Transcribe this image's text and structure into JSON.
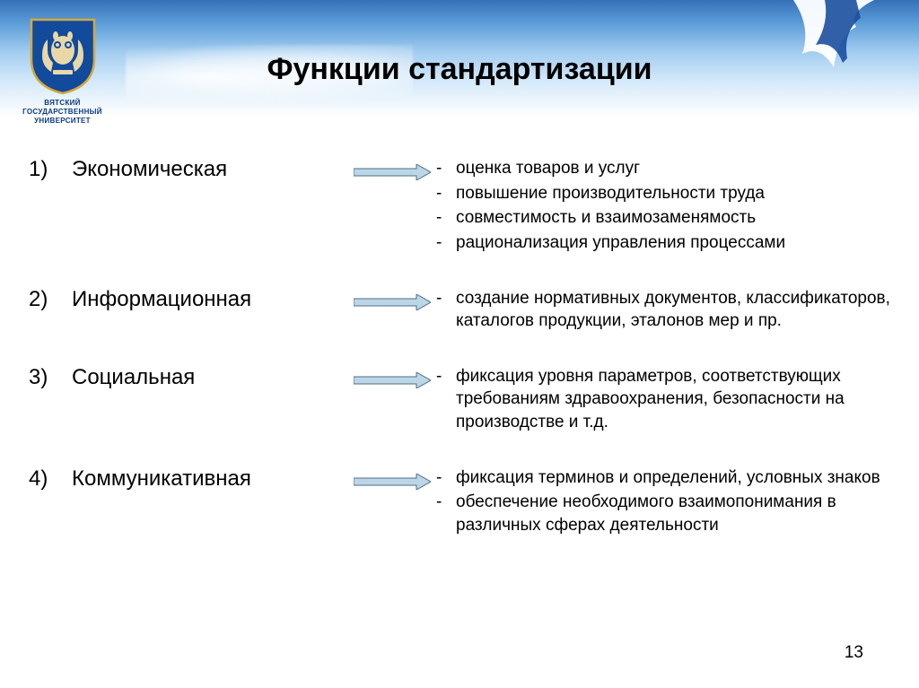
{
  "emblem": {
    "line1": "ВЯТСКИЙ",
    "line2": "ГОСУДАРСТВЕННЫЙ",
    "line3": "УНИВЕРСИТЕТ",
    "shield_fill": "#124a9c",
    "shield_stroke": "#d6a83c",
    "owl_color": "#e8d8a8"
  },
  "title": "Функции стандартизации",
  "arrow": {
    "fill": "#bdd6e6",
    "stroke": "#4a6d8a",
    "width": 86,
    "height": 18
  },
  "functions": [
    {
      "num": "1)",
      "name": "Экономическая",
      "details": [
        "оценка товаров и услуг",
        "повышение производительности труда",
        "совместимость и взаимозаменямость",
        "рационализация управления процессами"
      ]
    },
    {
      "num": "2)",
      "name": "Информационная",
      "details": [
        "создание нормативных документов, классификаторов, каталогов продукции, эталонов мер и пр."
      ]
    },
    {
      "num": "3)",
      "name": "Социальная",
      "details": [
        "фиксация уровня параметров, соответствующих требованиям здравоохранения, безопасности на производстве и т.д."
      ]
    },
    {
      "num": "4)",
      "name": "Коммуникативная",
      "details": [
        "фиксация терминов и определений, условных знаков",
        "обеспечение необходимого взаимопонимания в различных сферах деятельности"
      ]
    }
  ],
  "page_number": "13",
  "bg_gradient": [
    "#3570b8",
    "#5c9dd9",
    "#a3cdf0",
    "#d4e9f9",
    "#ffffff"
  ]
}
